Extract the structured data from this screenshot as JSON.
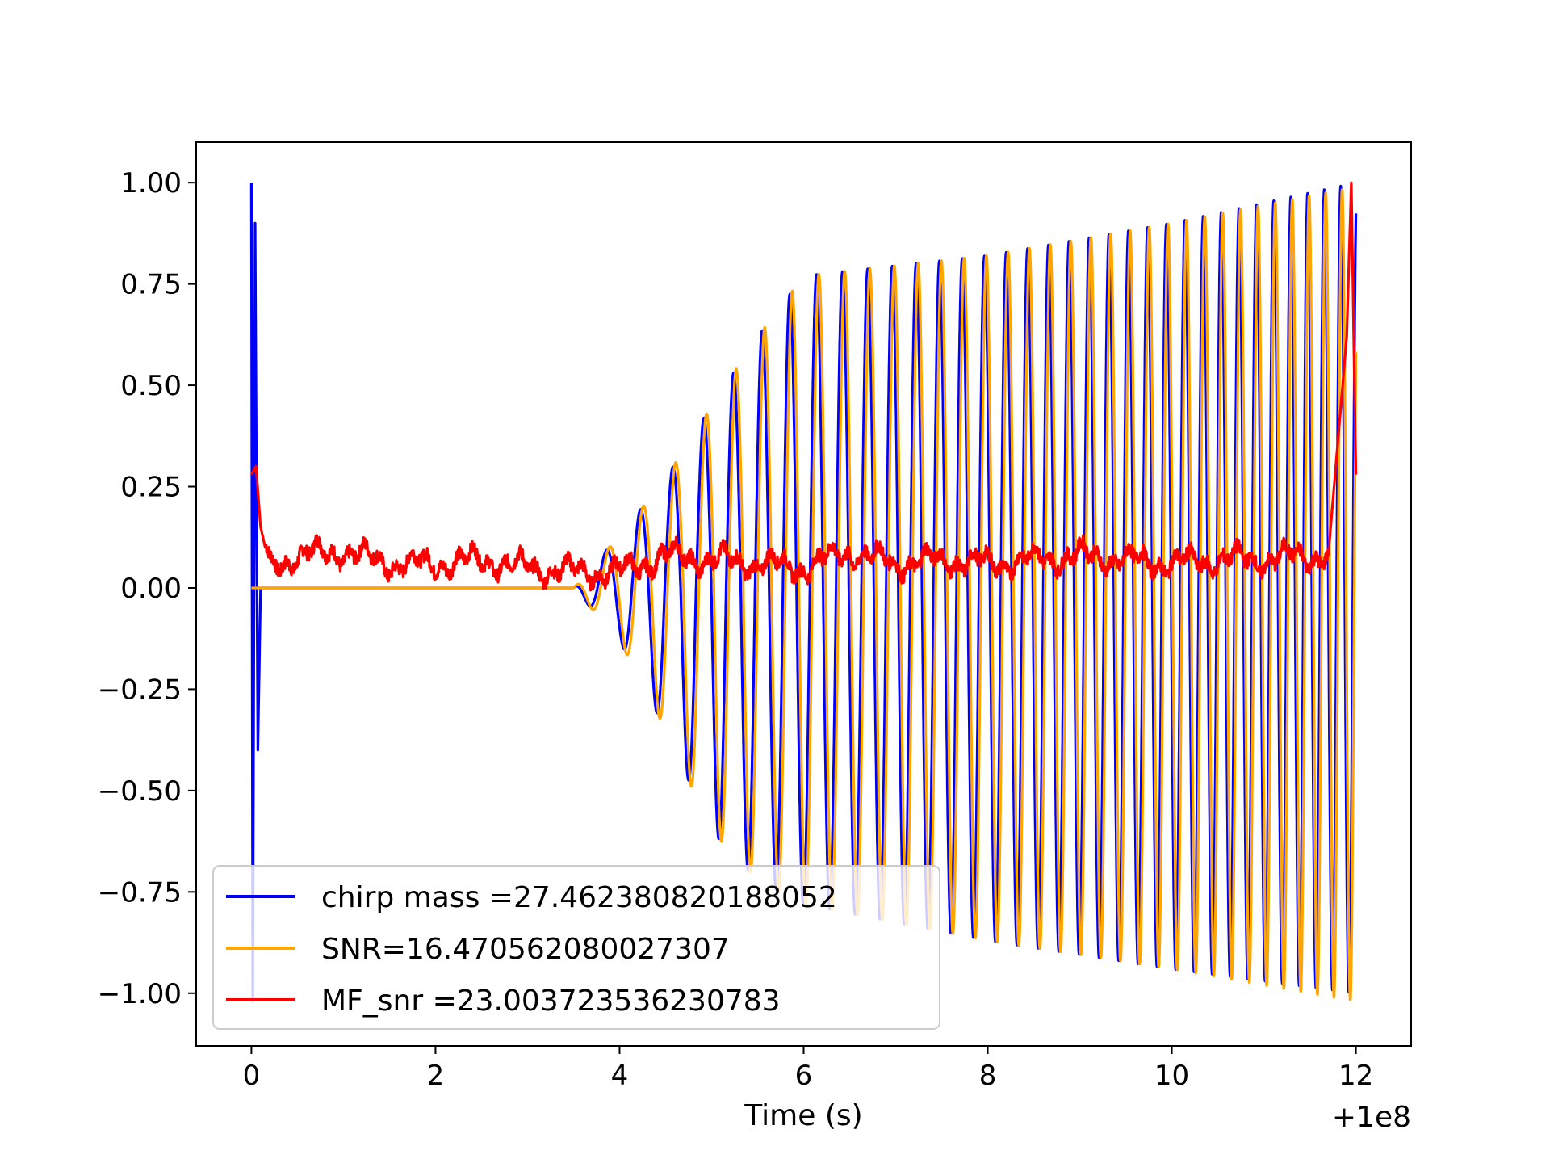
{
  "chart_data": {
    "type": "line",
    "title": "",
    "xlabel": "Time (s)",
    "ylabel": "",
    "x_offset_label": "+1e8",
    "xlim": [
      -0.6,
      12.6
    ],
    "ylim": [
      -1.13,
      1.1
    ],
    "xticks": [
      0,
      2,
      4,
      6,
      8,
      10,
      12
    ],
    "xtick_labels": [
      "0",
      "2",
      "4",
      "6",
      "8",
      "10",
      "12"
    ],
    "yticks": [
      1.0,
      0.75,
      0.5,
      0.25,
      0.0,
      -0.25,
      -0.5,
      -0.75,
      -1.0
    ],
    "ytick_labels": [
      "1.00",
      "0.75",
      "0.50",
      "0.25",
      "0.00",
      "−0.25",
      "−0.50",
      "−0.75",
      "−1.00"
    ],
    "grid": false,
    "legend_position": "lower-left",
    "series": [
      {
        "name": "chirp mass =27.462380820188052",
        "color": "#0000ff",
        "signal_start": 3.5,
        "signal_end": 12.0,
        "envelope_pos": [
          [
            3.5,
            0.0
          ],
          [
            4.0,
            0.13
          ],
          [
            4.5,
            0.27
          ],
          [
            5.0,
            0.45
          ],
          [
            5.5,
            0.62
          ],
          [
            6.0,
            0.77
          ],
          [
            8.0,
            0.82
          ],
          [
            10.0,
            0.9
          ],
          [
            12.0,
            1.0
          ]
        ],
        "envelope_neg": [
          [
            3.5,
            0.0
          ],
          [
            4.0,
            -0.13
          ],
          [
            4.5,
            -0.35
          ],
          [
            5.0,
            -0.6
          ],
          [
            5.5,
            -0.72
          ],
          [
            6.0,
            -0.78
          ],
          [
            8.0,
            -0.87
          ],
          [
            10.0,
            -0.94
          ],
          [
            12.0,
            -1.0
          ]
        ],
        "spike": {
          "x": 0.0,
          "y_max": 1.0,
          "y_min": -1.02
        }
      },
      {
        "name": "SNR=16.470562080027307",
        "color": "#ffa500",
        "signal_start": 3.5,
        "signal_end": 12.0,
        "envelope_pos": [
          [
            3.5,
            0.0
          ],
          [
            4.0,
            0.13
          ],
          [
            4.5,
            0.27
          ],
          [
            5.0,
            0.45
          ],
          [
            5.5,
            0.62
          ],
          [
            6.0,
            0.77
          ],
          [
            8.0,
            0.82
          ],
          [
            10.0,
            0.9
          ],
          [
            12.0,
            0.99
          ]
        ],
        "envelope_neg": [
          [
            3.5,
            0.0
          ],
          [
            4.0,
            -0.13
          ],
          [
            4.5,
            -0.35
          ],
          [
            5.0,
            -0.6
          ],
          [
            5.5,
            -0.72
          ],
          [
            6.0,
            -0.78
          ],
          [
            8.0,
            -0.87
          ],
          [
            10.0,
            -0.94
          ],
          [
            12.0,
            -1.02
          ]
        ]
      },
      {
        "name": "MF_snr =23.003723536230783",
        "color": "#ff0000",
        "points": [
          [
            0.0,
            0.28
          ],
          [
            0.05,
            0.3
          ],
          [
            0.1,
            0.15
          ],
          [
            0.2,
            0.05
          ],
          [
            0.5,
            0.08
          ],
          [
            1.0,
            0.09
          ],
          [
            1.5,
            0.06
          ],
          [
            2.0,
            0.06
          ],
          [
            2.5,
            0.07
          ],
          [
            3.0,
            0.05
          ],
          [
            3.5,
            0.04
          ],
          [
            4.0,
            0.04
          ],
          [
            4.5,
            0.08
          ],
          [
            5.0,
            0.07
          ],
          [
            5.5,
            0.06
          ],
          [
            6.0,
            0.05
          ],
          [
            6.5,
            0.09
          ],
          [
            7.0,
            0.06
          ],
          [
            7.5,
            0.07
          ],
          [
            8.0,
            0.06
          ],
          [
            8.5,
            0.07
          ],
          [
            9.0,
            0.08
          ],
          [
            9.5,
            0.07
          ],
          [
            10.0,
            0.06
          ],
          [
            10.5,
            0.07
          ],
          [
            11.0,
            0.07
          ],
          [
            11.5,
            0.08
          ],
          [
            11.7,
            0.08
          ],
          [
            11.8,
            0.35
          ],
          [
            11.9,
            0.62
          ],
          [
            11.95,
            1.0
          ],
          [
            12.0,
            0.28
          ]
        ]
      }
    ]
  }
}
